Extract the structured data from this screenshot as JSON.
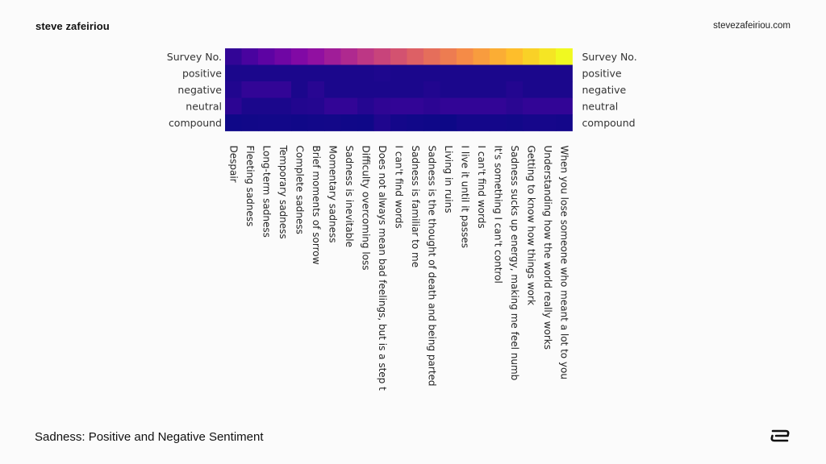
{
  "header": {
    "brand": "steve zafeiriou",
    "site": "stevezafeiriou.com"
  },
  "footer": {
    "title": "Sadness: Positive and Negative Sentiment",
    "logo_icon": "s-logo-icon"
  },
  "chart_data": {
    "type": "heatmap",
    "title": "",
    "rows": [
      "Survey No.",
      "positive",
      "negative",
      "neutral",
      "compound"
    ],
    "columns": [
      "Despair",
      "Fleeting sadness",
      "Long-term sadness",
      "Temporary sadness",
      "Complete sadness",
      "Brief moments of sorrow",
      "Momentary sadness",
      "Sadness is inevitable",
      "Difficulty overcoming loss",
      "Does not always mean bad feelings, but is a step t",
      "I can't find words",
      "Sadness is familiar to me",
      "Sadness is the thought of death and being parted",
      "Living in ruins",
      "I live it until it passes",
      "I can't find words",
      "It's something I can't control",
      "Sadness sucks up energy, making me feel numb",
      "Getting to know how things work",
      "Understanding how the world really works",
      "When you lose someone who meant a lot to you"
    ],
    "values": [
      [
        1,
        2,
        3,
        4,
        5,
        6,
        7,
        8,
        9,
        10,
        11,
        12,
        13,
        14,
        15,
        16,
        17,
        18,
        19,
        20,
        21
      ],
      [
        0.0,
        0.0,
        0.0,
        0.0,
        0.0,
        0.0,
        0.0,
        0.0,
        0.0,
        0.12,
        0.0,
        0.0,
        0.0,
        0.0,
        0.0,
        0.0,
        0.0,
        0.0,
        0.0,
        0.0,
        0.0
      ],
      [
        0.25,
        1.0,
        1.0,
        1.0,
        0.0,
        0.58,
        0.0,
        0.0,
        0.0,
        0.0,
        0.0,
        0.0,
        0.25,
        0.0,
        0.0,
        0.0,
        0.0,
        0.35,
        0.0,
        0.0,
        0.0
      ],
      [
        0.75,
        0.0,
        0.0,
        0.0,
        0.3,
        0.42,
        1.0,
        1.0,
        0.45,
        0.88,
        1.0,
        1.0,
        0.75,
        1.0,
        1.0,
        1.0,
        1.0,
        0.65,
        1.0,
        1.0,
        1.0
      ],
      [
        -0.5,
        -0.44,
        -0.4,
        -0.4,
        -0.48,
        -0.38,
        -0.35,
        -0.48,
        -0.5,
        0.2,
        -0.3,
        -0.42,
        -0.5,
        -0.6,
        -0.3,
        -0.3,
        -0.3,
        -0.4,
        -0.2,
        -0.2,
        -0.3
      ]
    ],
    "colormap": "plasma",
    "colors": {
      "low": "#0d0887",
      "mid": "#cc4778",
      "high": "#f0f921"
    },
    "xlabel": "",
    "ylabel": ""
  }
}
